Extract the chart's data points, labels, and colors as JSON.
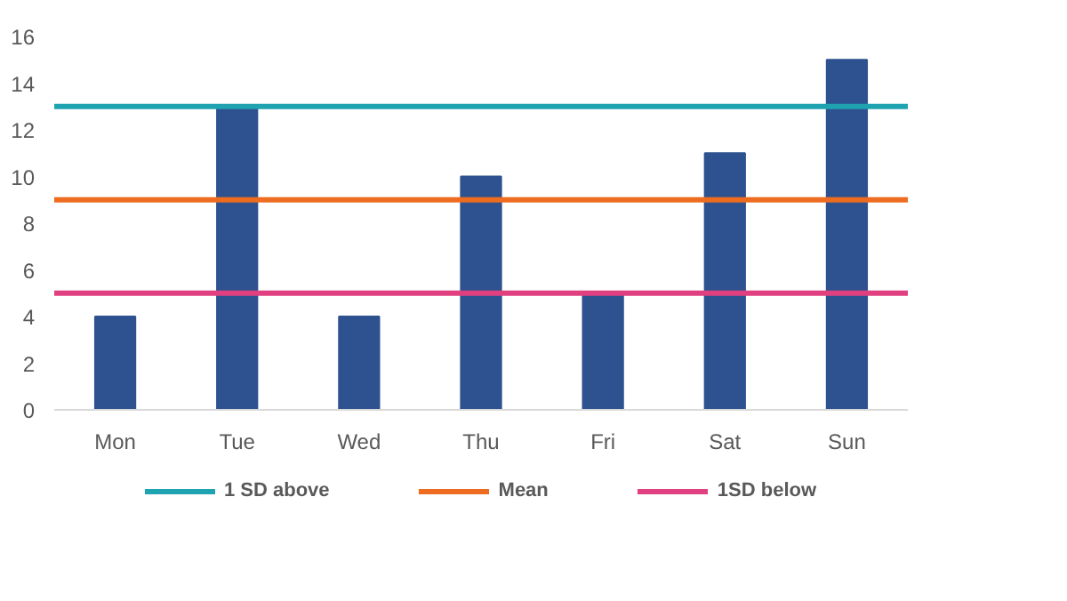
{
  "chart_data": {
    "type": "bar",
    "categories": [
      "Mon",
      "Tue",
      "Wed",
      "Thu",
      "Fri",
      "Sat",
      "Sun"
    ],
    "values": [
      4,
      13,
      4,
      10,
      5,
      11,
      15
    ],
    "color": "#2e528f",
    "ylim": [
      0,
      16
    ],
    "yticks": [
      0,
      2,
      4,
      6,
      8,
      10,
      12,
      14,
      16
    ],
    "grid": false,
    "legend": "bottom",
    "ref_lines": [
      {
        "axis": "y",
        "value": 13,
        "label": "1 SD above",
        "color": "#1fa3b0"
      },
      {
        "axis": "y",
        "value": 9,
        "label": "Mean",
        "color": "#ed6c1f"
      },
      {
        "axis": "y",
        "value": 5,
        "label": "1SD below",
        "color": "#e0407f"
      }
    ]
  }
}
